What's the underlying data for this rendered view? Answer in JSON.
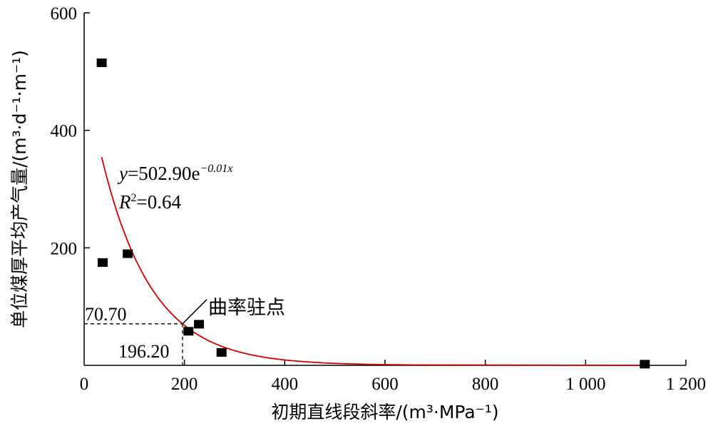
{
  "chart_data": {
    "type": "scatter",
    "title": "",
    "xlabel": "初期直线段斜率/(m³·MPa⁻¹)",
    "ylabel": "单位煤厚平均产气量/(m³·d⁻¹·m⁻¹)",
    "xlim": [
      0,
      1200
    ],
    "ylim": [
      0,
      600
    ],
    "x_ticks": [
      {
        "value": 0,
        "label": "0"
      },
      {
        "value": 200,
        "label": "200"
      },
      {
        "value": 400,
        "label": "400"
      },
      {
        "value": 600,
        "label": "600"
      },
      {
        "value": 800,
        "label": "800"
      },
      {
        "value": 1000,
        "label": "1 000"
      },
      {
        "value": 1200,
        "label": "1 200"
      }
    ],
    "y_ticks": [
      {
        "value": 0,
        "label": "0"
      },
      {
        "value": 200,
        "label": "200"
      },
      {
        "value": 400,
        "label": "400"
      },
      {
        "value": 600,
        "label": "600"
      }
    ],
    "grid": false,
    "series": [
      {
        "x": [
          35,
          37,
          87,
          208,
          229,
          274,
          1118
        ],
        "y": [
          515,
          175,
          190,
          58,
          70,
          22,
          2
        ],
        "color": "#000000",
        "marker": "square"
      }
    ],
    "fit": {
      "equation": "y=502.90e^(-0.01x)",
      "a": 502.9,
      "b": 0.01,
      "x_range": [
        35,
        650
      ],
      "color": "#cc0000",
      "label_eq_y": "y",
      "label_eq_rest": "=502.90e",
      "label_eq_exp": "−0.01x",
      "label_r2_r": "R",
      "label_r2_sup": "2",
      "label_r2_rest": "=0.64"
    },
    "stationary_point": {
      "x": 196.2,
      "y": 70.7,
      "x_label": "196.20",
      "y_label": "70.70",
      "annotation": "曲率驻点"
    }
  }
}
